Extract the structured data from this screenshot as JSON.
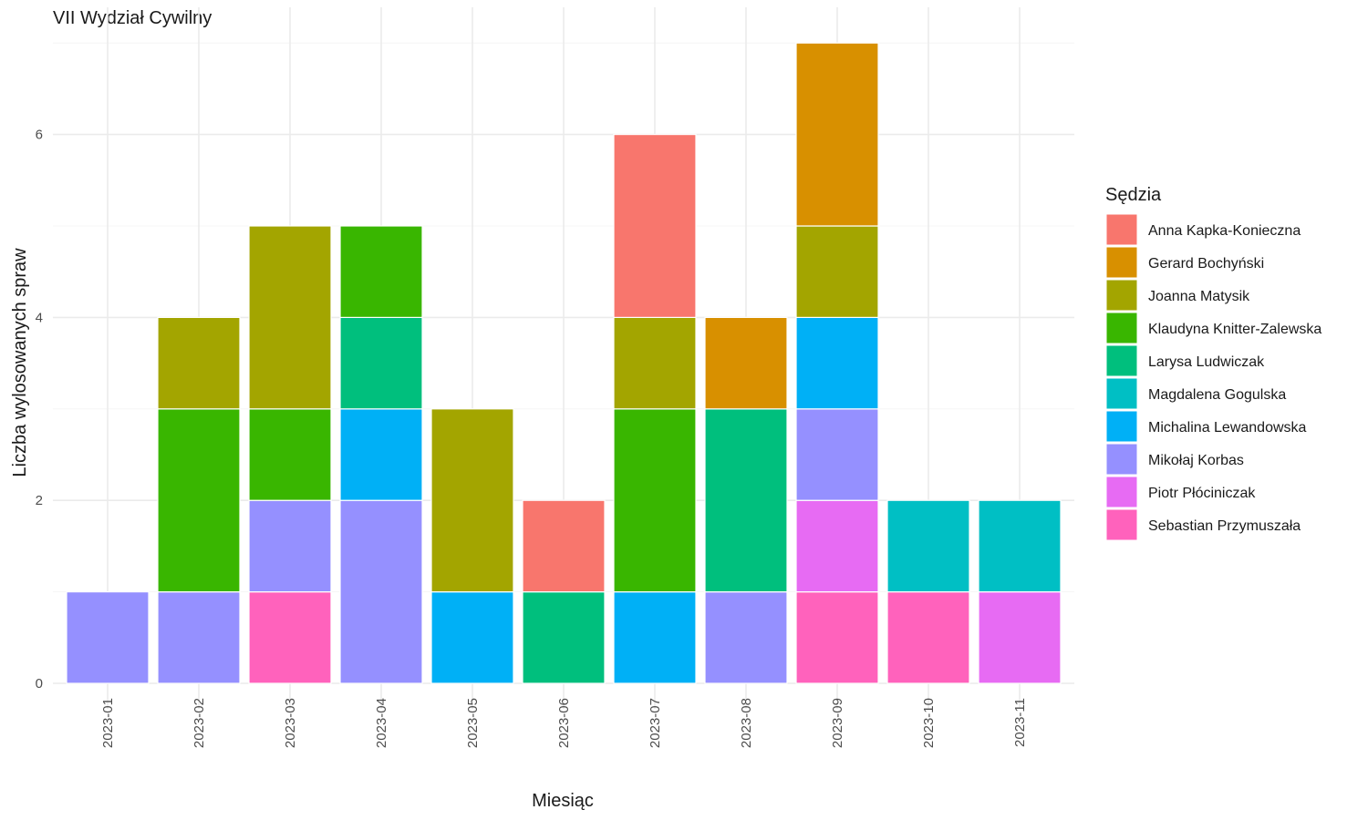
{
  "chart_data": {
    "type": "bar",
    "stacked": true,
    "title": "VII Wydział Cywilny",
    "xlabel": "Miesiąc",
    "ylabel": "Liczba wylosowanych spraw",
    "ylim": [
      0,
      7
    ],
    "yticks": [
      0,
      2,
      4,
      6
    ],
    "grid": true,
    "legend_title": "Sędzia",
    "legend_position": "right",
    "categories": [
      "2023-01",
      "2023-02",
      "2023-03",
      "2023-04",
      "2023-05",
      "2023-06",
      "2023-07",
      "2023-08",
      "2023-09",
      "2023-10",
      "2023-11"
    ],
    "series": [
      {
        "name": "Anna Kapka-Konieczna",
        "color": "#F8766D",
        "values": [
          0,
          0,
          0,
          0,
          0,
          1,
          2,
          0,
          0,
          0,
          0
        ]
      },
      {
        "name": "Gerard Bochyński",
        "color": "#D89000",
        "values": [
          0,
          0,
          0,
          0,
          0,
          0,
          0,
          1,
          2,
          0,
          0
        ]
      },
      {
        "name": "Joanna Matysik",
        "color": "#A3A500",
        "values": [
          0,
          1,
          2,
          0,
          2,
          0,
          1,
          0,
          1,
          0,
          0
        ]
      },
      {
        "name": "Klaudyna Knitter-Zalewska",
        "color": "#39B600",
        "values": [
          0,
          2,
          1,
          1,
          0,
          0,
          2,
          0,
          0,
          0,
          0
        ]
      },
      {
        "name": "Larysa Ludwiczak",
        "color": "#00BF7D",
        "values": [
          0,
          0,
          0,
          1,
          0,
          1,
          0,
          2,
          0,
          0,
          0
        ]
      },
      {
        "name": "Magdalena Gogulska",
        "color": "#00BFC4",
        "values": [
          0,
          0,
          0,
          0,
          0,
          0,
          0,
          0,
          0,
          1,
          1
        ]
      },
      {
        "name": "Michalina Lewandowska",
        "color": "#00B0F6",
        "values": [
          0,
          0,
          0,
          1,
          1,
          0,
          1,
          0,
          1,
          0,
          0
        ]
      },
      {
        "name": "Mikołaj Korbas",
        "color": "#9590FF",
        "values": [
          1,
          1,
          1,
          2,
          0,
          0,
          0,
          1,
          1,
          0,
          0
        ]
      },
      {
        "name": "Piotr Płóciniczak",
        "color": "#E76BF3",
        "values": [
          0,
          0,
          0,
          0,
          0,
          0,
          0,
          0,
          1,
          0,
          1
        ]
      },
      {
        "name": "Sebastian Przymuszała",
        "color": "#FF62BC",
        "values": [
          0,
          0,
          1,
          0,
          0,
          0,
          0,
          0,
          1,
          1,
          0
        ]
      }
    ]
  }
}
